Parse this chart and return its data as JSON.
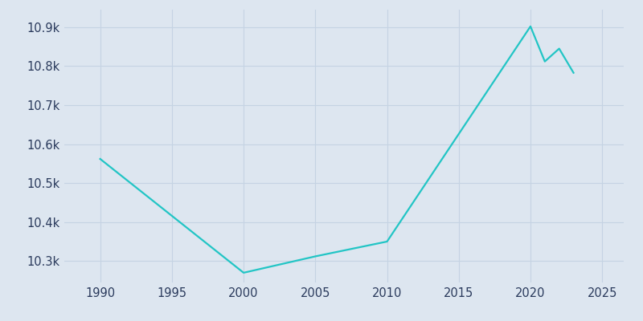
{
  "years": [
    1990,
    2000,
    2005,
    2010,
    2020,
    2021,
    2022,
    2023
  ],
  "population": [
    10562,
    10270,
    10312,
    10350,
    10902,
    10812,
    10845,
    10783
  ],
  "line_color": "#22c5c5",
  "bg_color": "#dde6f0",
  "plot_bg_color": "#dde6f0",
  "text_color": "#2a3a5c",
  "grid_color": "#c5d3e3",
  "xlim": [
    1987.5,
    2026.5
  ],
  "ylim": [
    10245,
    10945
  ],
  "xticks": [
    1990,
    1995,
    2000,
    2005,
    2010,
    2015,
    2020,
    2025
  ],
  "ytick_values": [
    10300,
    10400,
    10500,
    10600,
    10700,
    10800,
    10900
  ],
  "ytick_labels": [
    "10.3k",
    "10.4k",
    "10.5k",
    "10.6k",
    "10.7k",
    "10.8k",
    "10.9k"
  ],
  "linewidth": 1.6,
  "tick_fontsize": 10.5,
  "figure_facecolor": "#dde6f0"
}
